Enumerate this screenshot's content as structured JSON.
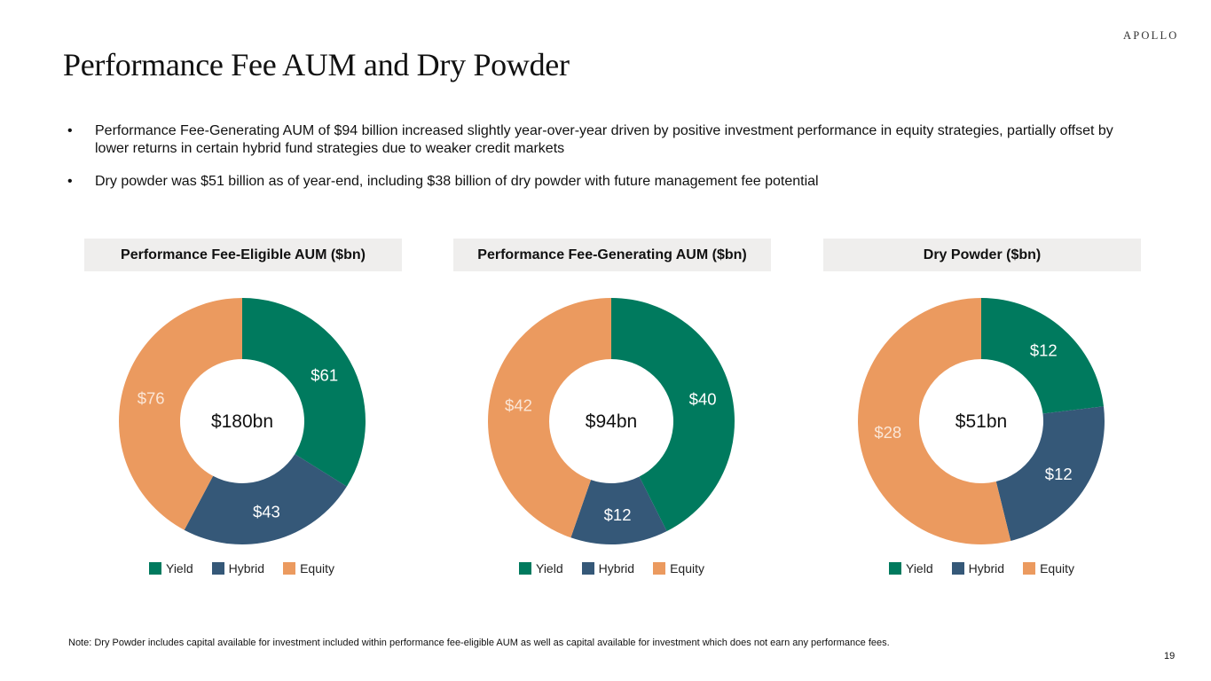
{
  "brand": "APOLLO",
  "title": "Performance Fee AUM and Dry Powder",
  "bullets": [
    {
      "marker": "•",
      "text": "Performance Fee-Generating AUM of $94 billion increased slightly year-over-year driven by positive investment performance in equity strategies, partially offset by lower returns in certain hybrid fund strategies due to weaker credit markets"
    },
    {
      "marker": "•",
      "text": "Dry powder was $51 billion as of year-end, including $38 billion of dry powder with future management fee potential"
    }
  ],
  "colors": {
    "Yield": "#007a5e",
    "Hybrid": "#355878",
    "Equity": "#eb9a5f",
    "panel_header_bg": "#efeeed"
  },
  "chart_data": [
    {
      "type": "pie",
      "variant": "donut",
      "title": "Performance Fee-Eligible AUM ($bn)",
      "center_label": "$180bn",
      "categories": [
        "Yield",
        "Hybrid",
        "Equity"
      ],
      "values": [
        61,
        43,
        76
      ],
      "data_labels": [
        "$61",
        "$43",
        "$76"
      ],
      "legend": [
        "Yield",
        "Hybrid",
        "Equity"
      ],
      "legend_position": "bottom",
      "start": "12 o'clock, clockwise"
    },
    {
      "type": "pie",
      "variant": "donut",
      "title": "Performance Fee-Generating AUM ($bn)",
      "center_label": "$94bn",
      "categories": [
        "Yield",
        "Hybrid",
        "Equity"
      ],
      "values": [
        40,
        12,
        42
      ],
      "data_labels": [
        "$40",
        "$12",
        "$42"
      ],
      "legend": [
        "Yield",
        "Hybrid",
        "Equity"
      ],
      "legend_position": "bottom",
      "start": "12 o'clock, clockwise"
    },
    {
      "type": "pie",
      "variant": "donut",
      "title": "Dry Powder ($bn)",
      "center_label": "$51bn",
      "categories": [
        "Yield",
        "Hybrid",
        "Equity"
      ],
      "values": [
        12,
        12,
        28
      ],
      "data_labels": [
        "$12",
        "$12",
        "$28"
      ],
      "legend": [
        "Yield",
        "Hybrid",
        "Equity"
      ],
      "legend_position": "bottom",
      "start": "12 o'clock, clockwise"
    }
  ],
  "note": "Note: Dry Powder includes capital available for investment included within performance fee-eligible AUM as well as capital available for investment which does not earn any performance fees.",
  "page_number": "19"
}
